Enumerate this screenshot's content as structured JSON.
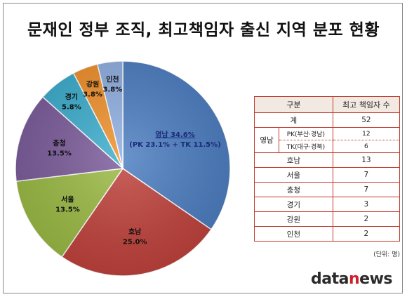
{
  "title": "문재인 정부 조직, 최고책임자 출신 지역 분포 현황",
  "chart_data": {
    "type": "pie",
    "slices": [
      {
        "name": "영남",
        "value": 34.6,
        "label": "34.6%",
        "detail": "(PK 23.1% + TK 11.5%)",
        "color": "#4a7cc0"
      },
      {
        "name": "호남",
        "value": 25.0,
        "label": "25.0%",
        "color": "#c0403a"
      },
      {
        "name": "서울",
        "value": 13.5,
        "label": "13.5%",
        "color": "#9aba42"
      },
      {
        "name": "충청",
        "value": 13.5,
        "label": "13.5%",
        "color": "#7a5a9a"
      },
      {
        "name": "경기",
        "value": 5.8,
        "label": "5.8%",
        "color": "#3aaccc"
      },
      {
        "name": "강원",
        "value": 3.8,
        "label": "3.8%",
        "color": "#f0902a"
      },
      {
        "name": "인천",
        "value": 3.8,
        "label": "3.8%",
        "color": "#8eaee0"
      }
    ]
  },
  "table": {
    "header": [
      "구분",
      "최고 책임자 수"
    ],
    "total": {
      "label": "계",
      "value": "52"
    },
    "yeongnam": {
      "label": "영남",
      "rows": [
        {
          "label": "PK(부산·경남)",
          "value": "12"
        },
        {
          "label": "TK(대구·경북)",
          "value": "6"
        }
      ]
    },
    "rows": [
      {
        "label": "호남",
        "value": "13"
      },
      {
        "label": "서울",
        "value": "7"
      },
      {
        "label": "충청",
        "value": "7"
      },
      {
        "label": "경기",
        "value": "3"
      },
      {
        "label": "강원",
        "value": "2"
      },
      {
        "label": "인천",
        "value": "2"
      }
    ],
    "unit": "(단위: 명)"
  },
  "brand": {
    "part1": "data",
    "part2": "n",
    "part3": "ews"
  }
}
